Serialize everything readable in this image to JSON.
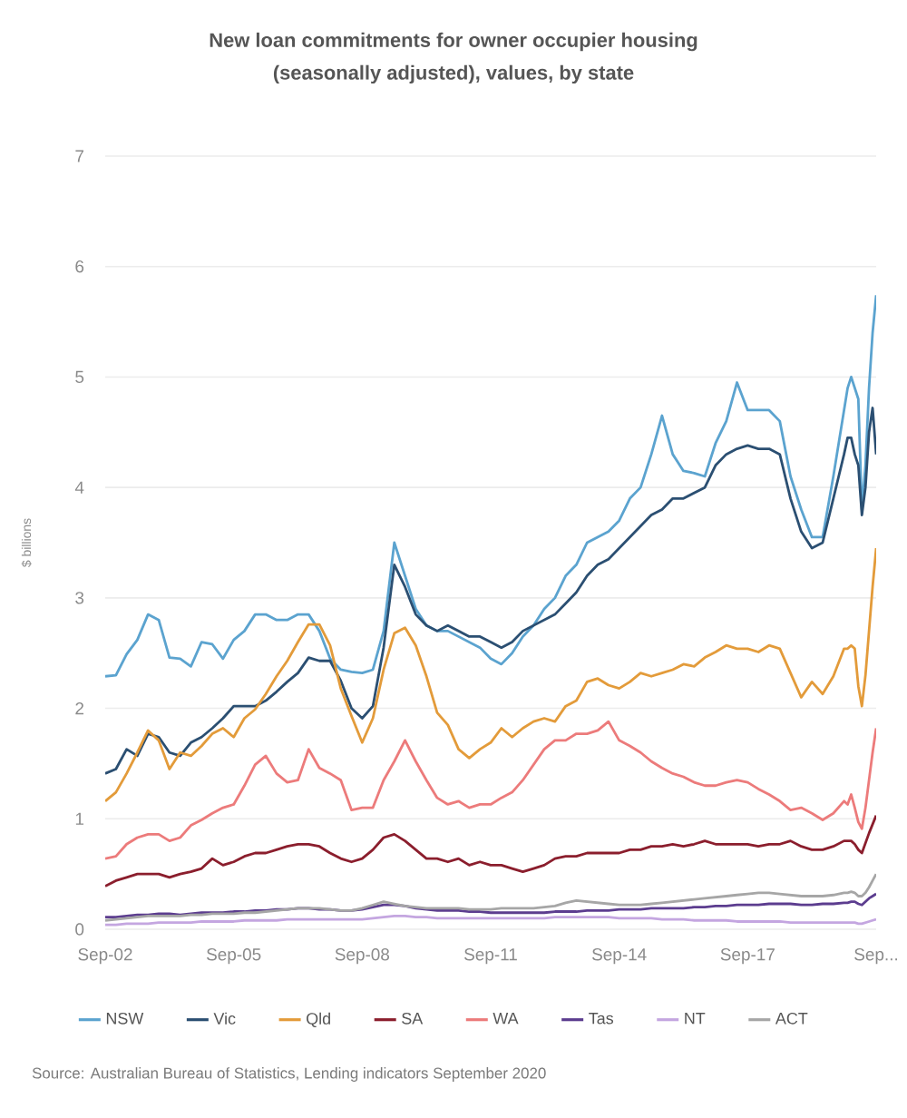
{
  "chart_data": {
    "type": "line",
    "title": "New loan commitments for owner occupier housing (seasonally adjusted), values, by state",
    "ylabel": "$ billions",
    "annotations": [
      "Source: Australian Bureau of Statistics, Lending indicators September 2020"
    ],
    "x": [
      "2002-09",
      "2002-12",
      "2003-03",
      "2003-06",
      "2003-09",
      "2003-12",
      "2004-03",
      "2004-06",
      "2004-09",
      "2004-12",
      "2005-03",
      "2005-06",
      "2005-09",
      "2005-12",
      "2006-03",
      "2006-06",
      "2006-09",
      "2006-12",
      "2007-03",
      "2007-06",
      "2007-09",
      "2007-12",
      "2008-03",
      "2008-06",
      "2008-09",
      "2008-12",
      "2009-03",
      "2009-06",
      "2009-09",
      "2009-12",
      "2010-03",
      "2010-06",
      "2010-09",
      "2010-12",
      "2011-03",
      "2011-06",
      "2011-09",
      "2011-12",
      "2012-03",
      "2012-06",
      "2012-09",
      "2012-12",
      "2013-03",
      "2013-06",
      "2013-09",
      "2013-12",
      "2014-03",
      "2014-06",
      "2014-09",
      "2014-12",
      "2015-03",
      "2015-06",
      "2015-09",
      "2015-12",
      "2016-03",
      "2016-06",
      "2016-09",
      "2016-12",
      "2017-03",
      "2017-06",
      "2017-09",
      "2017-12",
      "2018-03",
      "2018-06",
      "2018-09",
      "2018-12",
      "2019-03",
      "2019-06",
      "2019-09",
      "2019-12",
      "2020-01",
      "2020-02",
      "2020-03",
      "2020-04",
      "2020-05",
      "2020-06",
      "2020-07",
      "2020-08",
      "2020-09"
    ],
    "series": [
      {
        "name": "NSW",
        "color": "#5ba3cf",
        "values": [
          2.29,
          2.3,
          2.49,
          2.62,
          2.85,
          2.8,
          2.46,
          2.45,
          2.38,
          2.6,
          2.58,
          2.45,
          2.62,
          2.7,
          2.85,
          2.85,
          2.8,
          2.8,
          2.85,
          2.85,
          2.7,
          2.45,
          2.35,
          2.33,
          2.32,
          2.35,
          2.7,
          3.5,
          3.2,
          2.9,
          2.75,
          2.7,
          2.7,
          2.65,
          2.6,
          2.55,
          2.45,
          2.4,
          2.5,
          2.65,
          2.75,
          2.9,
          3.0,
          3.2,
          3.3,
          3.5,
          3.55,
          3.6,
          3.7,
          3.9,
          4.0,
          4.3,
          4.65,
          4.3,
          4.15,
          4.13,
          4.1,
          4.4,
          4.6,
          4.95,
          4.7,
          4.7,
          4.7,
          4.6,
          4.1,
          3.8,
          3.55,
          3.55,
          4.1,
          4.7,
          4.9,
          5.0,
          4.9,
          4.8,
          3.8,
          4.2,
          4.9,
          5.4,
          5.74
        ]
      },
      {
        "name": "Vic",
        "color": "#2b4f72",
        "values": [
          1.41,
          1.45,
          1.63,
          1.57,
          1.77,
          1.74,
          1.6,
          1.57,
          1.69,
          1.74,
          1.82,
          1.91,
          2.02,
          2.02,
          2.02,
          2.07,
          2.15,
          2.24,
          2.32,
          2.46,
          2.43,
          2.43,
          2.25,
          2.0,
          1.91,
          2.02,
          2.55,
          3.3,
          3.1,
          2.85,
          2.75,
          2.7,
          2.75,
          2.7,
          2.65,
          2.65,
          2.6,
          2.55,
          2.6,
          2.7,
          2.75,
          2.8,
          2.85,
          2.95,
          3.05,
          3.2,
          3.3,
          3.35,
          3.45,
          3.55,
          3.65,
          3.75,
          3.8,
          3.9,
          3.9,
          3.95,
          4.0,
          4.2,
          4.3,
          4.35,
          4.38,
          4.35,
          4.35,
          4.3,
          3.9,
          3.6,
          3.45,
          3.5,
          3.9,
          4.3,
          4.45,
          4.45,
          4.3,
          4.2,
          3.75,
          4.0,
          4.5,
          4.72,
          4.3
        ]
      },
      {
        "name": "Qld",
        "color": "#e39b3a",
        "values": [
          1.16,
          1.24,
          1.41,
          1.6,
          1.8,
          1.71,
          1.45,
          1.6,
          1.57,
          1.66,
          1.77,
          1.82,
          1.74,
          1.91,
          1.99,
          2.13,
          2.29,
          2.43,
          2.6,
          2.76,
          2.76,
          2.57,
          2.18,
          1.93,
          1.69,
          1.91,
          2.35,
          2.68,
          2.73,
          2.57,
          2.29,
          1.96,
          1.85,
          1.63,
          1.55,
          1.63,
          1.69,
          1.82,
          1.74,
          1.82,
          1.88,
          1.91,
          1.88,
          2.02,
          2.07,
          2.24,
          2.27,
          2.21,
          2.18,
          2.24,
          2.32,
          2.29,
          2.32,
          2.35,
          2.4,
          2.38,
          2.46,
          2.51,
          2.57,
          2.54,
          2.54,
          2.51,
          2.57,
          2.54,
          2.32,
          2.1,
          2.24,
          2.13,
          2.29,
          2.54,
          2.54,
          2.57,
          2.54,
          2.2,
          2.02,
          2.3,
          2.7,
          3.1,
          3.45
        ]
      },
      {
        "name": "SA",
        "color": "#8b1e2d",
        "values": [
          0.39,
          0.44,
          0.47,
          0.5,
          0.5,
          0.5,
          0.47,
          0.5,
          0.52,
          0.55,
          0.64,
          0.58,
          0.61,
          0.66,
          0.69,
          0.69,
          0.72,
          0.75,
          0.77,
          0.77,
          0.75,
          0.69,
          0.64,
          0.61,
          0.64,
          0.72,
          0.83,
          0.86,
          0.8,
          0.72,
          0.64,
          0.64,
          0.61,
          0.64,
          0.58,
          0.61,
          0.58,
          0.58,
          0.55,
          0.52,
          0.55,
          0.58,
          0.64,
          0.66,
          0.66,
          0.69,
          0.69,
          0.69,
          0.69,
          0.72,
          0.72,
          0.75,
          0.75,
          0.77,
          0.75,
          0.77,
          0.8,
          0.77,
          0.77,
          0.77,
          0.77,
          0.75,
          0.77,
          0.77,
          0.8,
          0.75,
          0.72,
          0.72,
          0.75,
          0.8,
          0.8,
          0.8,
          0.77,
          0.72,
          0.69,
          0.78,
          0.87,
          0.95,
          1.03
        ]
      },
      {
        "name": "WA",
        "color": "#ec7b7b",
        "values": [
          0.64,
          0.66,
          0.77,
          0.83,
          0.86,
          0.86,
          0.8,
          0.83,
          0.94,
          0.99,
          1.05,
          1.1,
          1.13,
          1.3,
          1.49,
          1.57,
          1.41,
          1.33,
          1.35,
          1.63,
          1.46,
          1.41,
          1.35,
          1.08,
          1.1,
          1.1,
          1.35,
          1.52,
          1.71,
          1.52,
          1.35,
          1.19,
          1.13,
          1.16,
          1.1,
          1.13,
          1.13,
          1.19,
          1.24,
          1.35,
          1.49,
          1.63,
          1.71,
          1.71,
          1.77,
          1.77,
          1.8,
          1.88,
          1.71,
          1.66,
          1.6,
          1.52,
          1.46,
          1.41,
          1.38,
          1.33,
          1.3,
          1.3,
          1.33,
          1.35,
          1.33,
          1.27,
          1.22,
          1.16,
          1.08,
          1.1,
          1.05,
          0.99,
          1.05,
          1.16,
          1.13,
          1.22,
          1.1,
          0.97,
          0.91,
          1.1,
          1.35,
          1.6,
          1.82
        ]
      },
      {
        "name": "Tas",
        "color": "#5c3d8f",
        "values": [
          0.11,
          0.11,
          0.12,
          0.13,
          0.13,
          0.14,
          0.14,
          0.13,
          0.14,
          0.15,
          0.15,
          0.15,
          0.16,
          0.16,
          0.17,
          0.17,
          0.18,
          0.18,
          0.19,
          0.19,
          0.18,
          0.18,
          0.17,
          0.17,
          0.18,
          0.2,
          0.22,
          0.22,
          0.21,
          0.19,
          0.18,
          0.17,
          0.17,
          0.17,
          0.16,
          0.16,
          0.15,
          0.15,
          0.15,
          0.15,
          0.15,
          0.15,
          0.16,
          0.16,
          0.16,
          0.17,
          0.17,
          0.17,
          0.18,
          0.18,
          0.18,
          0.19,
          0.19,
          0.19,
          0.19,
          0.2,
          0.2,
          0.21,
          0.21,
          0.22,
          0.22,
          0.22,
          0.23,
          0.23,
          0.23,
          0.22,
          0.22,
          0.23,
          0.23,
          0.24,
          0.24,
          0.25,
          0.25,
          0.23,
          0.22,
          0.25,
          0.28,
          0.3,
          0.32
        ]
      },
      {
        "name": "NT",
        "color": "#c4a6e0",
        "values": [
          0.04,
          0.04,
          0.05,
          0.05,
          0.05,
          0.06,
          0.06,
          0.06,
          0.06,
          0.07,
          0.07,
          0.07,
          0.07,
          0.08,
          0.08,
          0.08,
          0.08,
          0.09,
          0.09,
          0.09,
          0.09,
          0.09,
          0.09,
          0.09,
          0.09,
          0.1,
          0.11,
          0.12,
          0.12,
          0.11,
          0.11,
          0.1,
          0.1,
          0.1,
          0.1,
          0.1,
          0.1,
          0.1,
          0.1,
          0.1,
          0.1,
          0.1,
          0.11,
          0.11,
          0.11,
          0.11,
          0.11,
          0.11,
          0.1,
          0.1,
          0.1,
          0.1,
          0.09,
          0.09,
          0.09,
          0.08,
          0.08,
          0.08,
          0.08,
          0.07,
          0.07,
          0.07,
          0.07,
          0.07,
          0.06,
          0.06,
          0.06,
          0.06,
          0.06,
          0.06,
          0.06,
          0.06,
          0.06,
          0.05,
          0.05,
          0.06,
          0.07,
          0.08,
          0.09
        ]
      },
      {
        "name": "ACT",
        "color": "#a6a6a6",
        "values": [
          0.08,
          0.09,
          0.1,
          0.11,
          0.12,
          0.12,
          0.12,
          0.12,
          0.13,
          0.13,
          0.14,
          0.14,
          0.14,
          0.15,
          0.15,
          0.16,
          0.17,
          0.18,
          0.19,
          0.19,
          0.19,
          0.18,
          0.17,
          0.17,
          0.19,
          0.22,
          0.25,
          0.23,
          0.21,
          0.2,
          0.19,
          0.19,
          0.19,
          0.19,
          0.18,
          0.18,
          0.18,
          0.19,
          0.19,
          0.19,
          0.19,
          0.2,
          0.21,
          0.24,
          0.26,
          0.25,
          0.24,
          0.23,
          0.22,
          0.22,
          0.22,
          0.23,
          0.24,
          0.25,
          0.26,
          0.27,
          0.28,
          0.29,
          0.3,
          0.31,
          0.32,
          0.33,
          0.33,
          0.32,
          0.31,
          0.3,
          0.3,
          0.3,
          0.31,
          0.33,
          0.33,
          0.34,
          0.33,
          0.3,
          0.3,
          0.33,
          0.38,
          0.44,
          0.5
        ]
      }
    ],
    "xlim": [
      "2002-09",
      "2020-09"
    ],
    "xticks": [
      {
        "value": "2002-09",
        "label": "Sep-02"
      },
      {
        "value": "2005-09",
        "label": "Sep-05"
      },
      {
        "value": "2008-09",
        "label": "Sep-08"
      },
      {
        "value": "2011-09",
        "label": "Sep-11"
      },
      {
        "value": "2014-09",
        "label": "Sep-14"
      },
      {
        "value": "2017-09",
        "label": "Sep-17"
      },
      {
        "value": "2020-09",
        "label": "Sep..."
      }
    ],
    "ylim": [
      0,
      7
    ],
    "yticks": [
      0,
      1,
      2,
      3,
      4,
      5,
      6,
      7
    ],
    "grid": "y",
    "legend": "bottom"
  }
}
